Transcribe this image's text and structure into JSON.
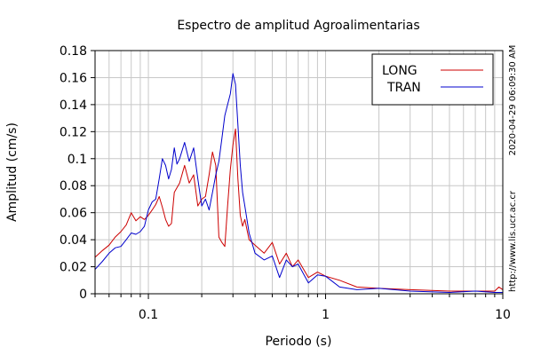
{
  "chart_data": {
    "type": "line",
    "title": "Espectro de amplitud Agroalimentarias",
    "xlabel": "Periodo (s)",
    "ylabel": "Amplitud (cm/s)",
    "x_scale": "log",
    "xlim": [
      0.05,
      10
    ],
    "ylim": [
      0,
      0.18
    ],
    "grid": true,
    "legend_position": "top-right",
    "x_tick_labels": [
      "0.1",
      "1",
      "10"
    ],
    "x_ticks": [
      0.1,
      1,
      10
    ],
    "y_ticks": [
      0,
      0.02,
      0.04,
      0.06,
      0.08,
      0.1,
      0.12,
      0.14,
      0.16,
      0.18
    ],
    "y_tick_labels": [
      "0",
      "0.02",
      "0.04",
      "0.06",
      "0.08",
      "0.1",
      "0.12",
      "0.14",
      "0.16",
      "0.18"
    ],
    "side_annotations": {
      "timestamp": "2020-04-29 06:09:30 AM",
      "website": "http://www.lis.ucr.ac.cr"
    },
    "series": [
      {
        "name": "LONG",
        "color": "#cc0000",
        "x": [
          0.05,
          0.055,
          0.06,
          0.065,
          0.07,
          0.075,
          0.08,
          0.085,
          0.09,
          0.095,
          0.1,
          0.105,
          0.11,
          0.115,
          0.12,
          0.125,
          0.13,
          0.135,
          0.14,
          0.15,
          0.16,
          0.17,
          0.18,
          0.19,
          0.2,
          0.21,
          0.22,
          0.23,
          0.24,
          0.25,
          0.26,
          0.27,
          0.28,
          0.29,
          0.3,
          0.31,
          0.32,
          0.33,
          0.34,
          0.35,
          0.37,
          0.4,
          0.45,
          0.5,
          0.55,
          0.6,
          0.65,
          0.7,
          0.8,
          0.9,
          1.0,
          1.2,
          1.5,
          2.0,
          3.0,
          5.0,
          7.0,
          9.0,
          9.5,
          10.0
        ],
        "y": [
          0.027,
          0.032,
          0.036,
          0.042,
          0.046,
          0.051,
          0.06,
          0.054,
          0.057,
          0.055,
          0.058,
          0.062,
          0.066,
          0.072,
          0.064,
          0.055,
          0.05,
          0.052,
          0.075,
          0.082,
          0.095,
          0.082,
          0.088,
          0.065,
          0.07,
          0.072,
          0.088,
          0.105,
          0.095,
          0.042,
          0.038,
          0.035,
          0.065,
          0.092,
          0.11,
          0.122,
          0.085,
          0.058,
          0.05,
          0.055,
          0.04,
          0.036,
          0.03,
          0.038,
          0.022,
          0.03,
          0.02,
          0.025,
          0.012,
          0.016,
          0.013,
          0.01,
          0.005,
          0.004,
          0.003,
          0.002,
          0.002,
          0.002,
          0.005,
          0.003
        ]
      },
      {
        "name": "TRAN",
        "color": "#0000cc",
        "x": [
          0.05,
          0.055,
          0.06,
          0.065,
          0.07,
          0.075,
          0.08,
          0.085,
          0.09,
          0.095,
          0.1,
          0.105,
          0.11,
          0.115,
          0.12,
          0.125,
          0.13,
          0.135,
          0.14,
          0.145,
          0.15,
          0.16,
          0.17,
          0.18,
          0.19,
          0.2,
          0.21,
          0.22,
          0.23,
          0.24,
          0.25,
          0.26,
          0.27,
          0.28,
          0.29,
          0.3,
          0.31,
          0.32,
          0.33,
          0.34,
          0.35,
          0.37,
          0.4,
          0.45,
          0.5,
          0.55,
          0.6,
          0.65,
          0.7,
          0.8,
          0.9,
          1.0,
          1.2,
          1.5,
          2.0,
          3.0,
          5.0,
          7.0,
          9.0,
          10.0
        ],
        "y": [
          0.018,
          0.024,
          0.03,
          0.034,
          0.035,
          0.04,
          0.045,
          0.044,
          0.046,
          0.05,
          0.062,
          0.068,
          0.07,
          0.085,
          0.1,
          0.095,
          0.085,
          0.092,
          0.108,
          0.096,
          0.1,
          0.112,
          0.098,
          0.108,
          0.085,
          0.065,
          0.07,
          0.062,
          0.075,
          0.088,
          0.098,
          0.115,
          0.132,
          0.14,
          0.148,
          0.163,
          0.155,
          0.125,
          0.095,
          0.075,
          0.065,
          0.045,
          0.03,
          0.025,
          0.028,
          0.012,
          0.025,
          0.02,
          0.022,
          0.008,
          0.014,
          0.013,
          0.005,
          0.003,
          0.004,
          0.002,
          0.001,
          0.002,
          0.001,
          0.001
        ]
      }
    ]
  }
}
